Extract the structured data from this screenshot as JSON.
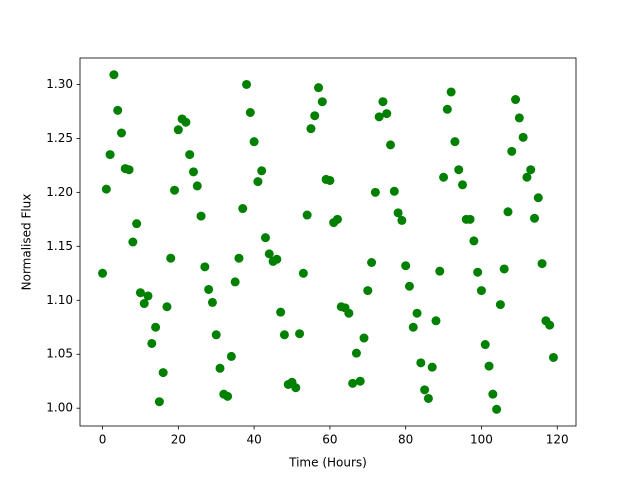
{
  "chart_data": {
    "type": "scatter",
    "x_label": "Time (Hours)",
    "y_label": "Normalised Flux",
    "color": "#008000",
    "x": [
      0,
      1,
      2,
      3,
      4,
      5,
      6,
      7,
      8,
      9,
      10,
      11,
      12,
      13,
      14,
      15,
      16,
      17,
      18,
      19,
      20,
      21,
      22,
      23,
      24,
      25,
      26,
      27,
      28,
      29,
      30,
      31,
      32,
      33,
      34,
      35,
      36,
      37,
      38,
      39,
      40,
      41,
      42,
      43,
      44,
      45,
      46,
      47,
      48,
      49,
      50,
      51,
      52,
      53,
      54,
      55,
      56,
      57,
      58,
      59,
      60,
      61,
      62,
      63,
      64,
      65,
      66,
      67,
      68,
      69,
      70,
      71,
      72,
      73,
      74,
      75,
      76,
      77,
      78,
      79,
      80,
      81,
      82,
      83,
      84,
      85,
      86,
      87,
      88,
      89,
      90,
      91,
      92,
      93,
      94,
      95,
      96,
      97,
      98,
      99,
      100,
      101,
      102,
      103,
      104,
      105,
      106,
      107,
      108,
      109,
      110,
      111,
      112,
      113,
      114,
      115,
      116,
      117,
      118,
      119
    ],
    "values": [
      1.125,
      1.203,
      1.235,
      1.309,
      1.276,
      1.255,
      1.222,
      1.221,
      1.154,
      1.171,
      1.107,
      1.097,
      1.104,
      1.06,
      1.075,
      1.006,
      1.033,
      1.094,
      1.139,
      1.202,
      1.258,
      1.268,
      1.265,
      1.235,
      1.219,
      1.206,
      1.178,
      1.131,
      1.11,
      1.098,
      1.068,
      1.037,
      1.013,
      1.011,
      1.048,
      1.117,
      1.139,
      1.185,
      1.3,
      1.274,
      1.247,
      1.21,
      1.22,
      1.158,
      1.143,
      1.136,
      1.138,
      1.089,
      1.068,
      1.022,
      1.024,
      1.019,
      1.069,
      1.125,
      1.179,
      1.259,
      1.271,
      1.297,
      1.284,
      1.212,
      1.211,
      1.172,
      1.175,
      1.094,
      1.093,
      1.088,
      1.023,
      1.051,
      1.025,
      1.065,
      1.109,
      1.135,
      1.2,
      1.27,
      1.284,
      1.273,
      1.244,
      1.201,
      1.181,
      1.174,
      1.132,
      1.113,
      1.075,
      1.088,
      1.042,
      1.017,
      1.009,
      1.038,
      1.081,
      1.127,
      1.214,
      1.277,
      1.293,
      1.247,
      1.221,
      1.207,
      1.175,
      1.175,
      1.155,
      1.126,
      1.109,
      1.059,
      1.039,
      1.013,
      0.999,
      1.096,
      1.129,
      1.182,
      1.238,
      1.286,
      1.269,
      1.251,
      1.214,
      1.221,
      1.176,
      1.195,
      1.134,
      1.081,
      1.077,
      1.047
    ],
    "xlim": [
      -5.95,
      124.95
    ],
    "xticks": [
      0,
      20,
      40,
      60,
      80,
      100,
      120
    ],
    "ylim": [
      0.9835,
      1.3245
    ],
    "yticks": [
      {
        "value": 1.0,
        "label": "1.00"
      },
      1.05,
      {
        "value": 1.1,
        "label": "1.10"
      },
      1.15,
      {
        "value": 1.2,
        "label": "1.20"
      },
      1.25,
      {
        "value": 1.3,
        "label": "1.30"
      }
    ],
    "grid": false
  }
}
